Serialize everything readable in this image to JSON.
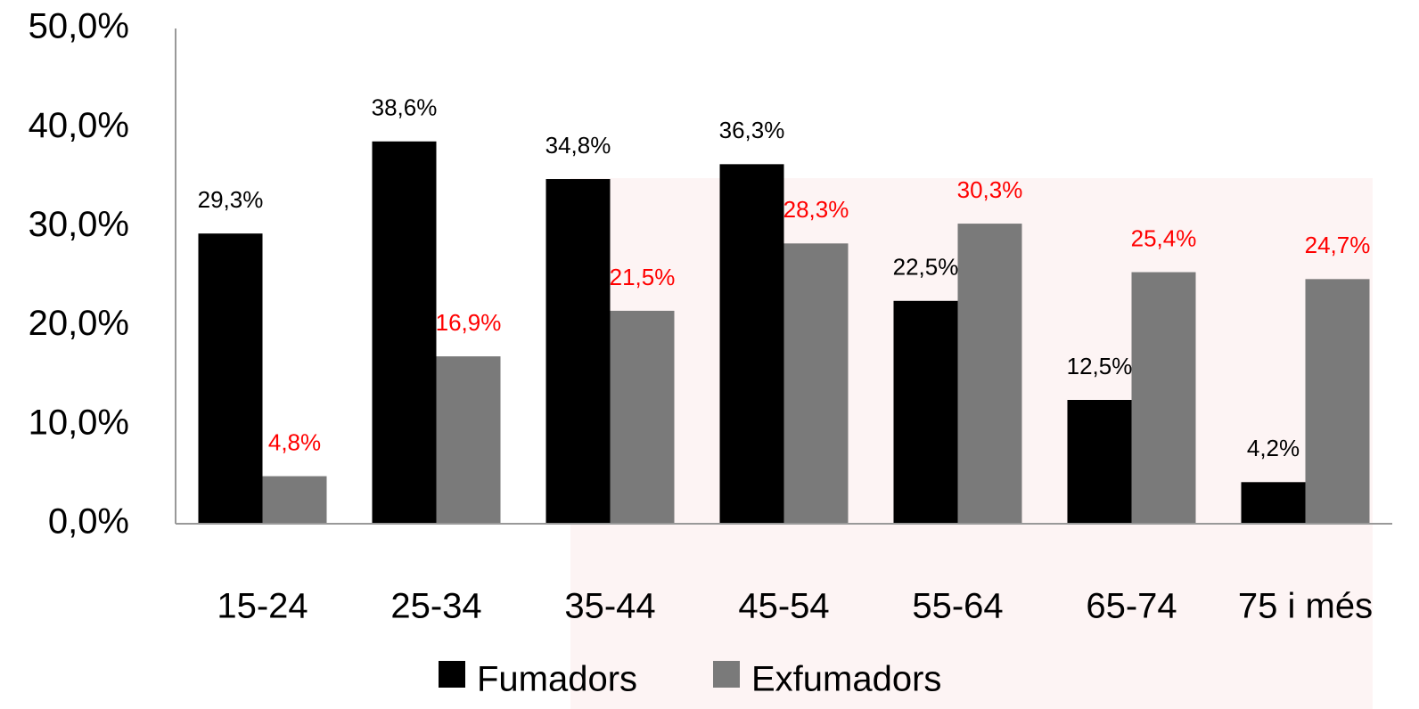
{
  "chart_data": {
    "type": "bar",
    "categories": [
      "15-24",
      "25-34",
      "35-44",
      "45-54",
      "55-64",
      "65-74",
      "75 i més"
    ],
    "series": [
      {
        "name": "Fumadors",
        "color": "#000000",
        "label_color": "#000000",
        "values": [
          29.3,
          38.6,
          34.8,
          36.3,
          22.5,
          12.5,
          4.2
        ],
        "value_labels": [
          "29,3%",
          "38,6%",
          "34,8%",
          "36,3%",
          "22,5%",
          "12,5%",
          "4,2%"
        ]
      },
      {
        "name": "Exfumadors",
        "color": "#7a7a7a",
        "label_color": "#ff0000",
        "values": [
          4.8,
          16.9,
          21.5,
          28.3,
          30.3,
          25.4,
          24.7
        ],
        "value_labels": [
          "4,8%",
          "16,9%",
          "21,5%",
          "28,3%",
          "30,3%",
          "25,4%",
          "24,7%"
        ]
      }
    ],
    "ylim": [
      0,
      50
    ],
    "yticks": [
      {
        "value": 0,
        "label": "0,0%"
      },
      {
        "value": 10,
        "label": "10,0%"
      },
      {
        "value": 20,
        "label": "20,0%"
      },
      {
        "value": 30,
        "label": "30,0%"
      },
      {
        "value": 40,
        "label": "40,0%"
      },
      {
        "value": 50,
        "label": "50,0%"
      }
    ],
    "grid": false,
    "legend": "bottom"
  }
}
